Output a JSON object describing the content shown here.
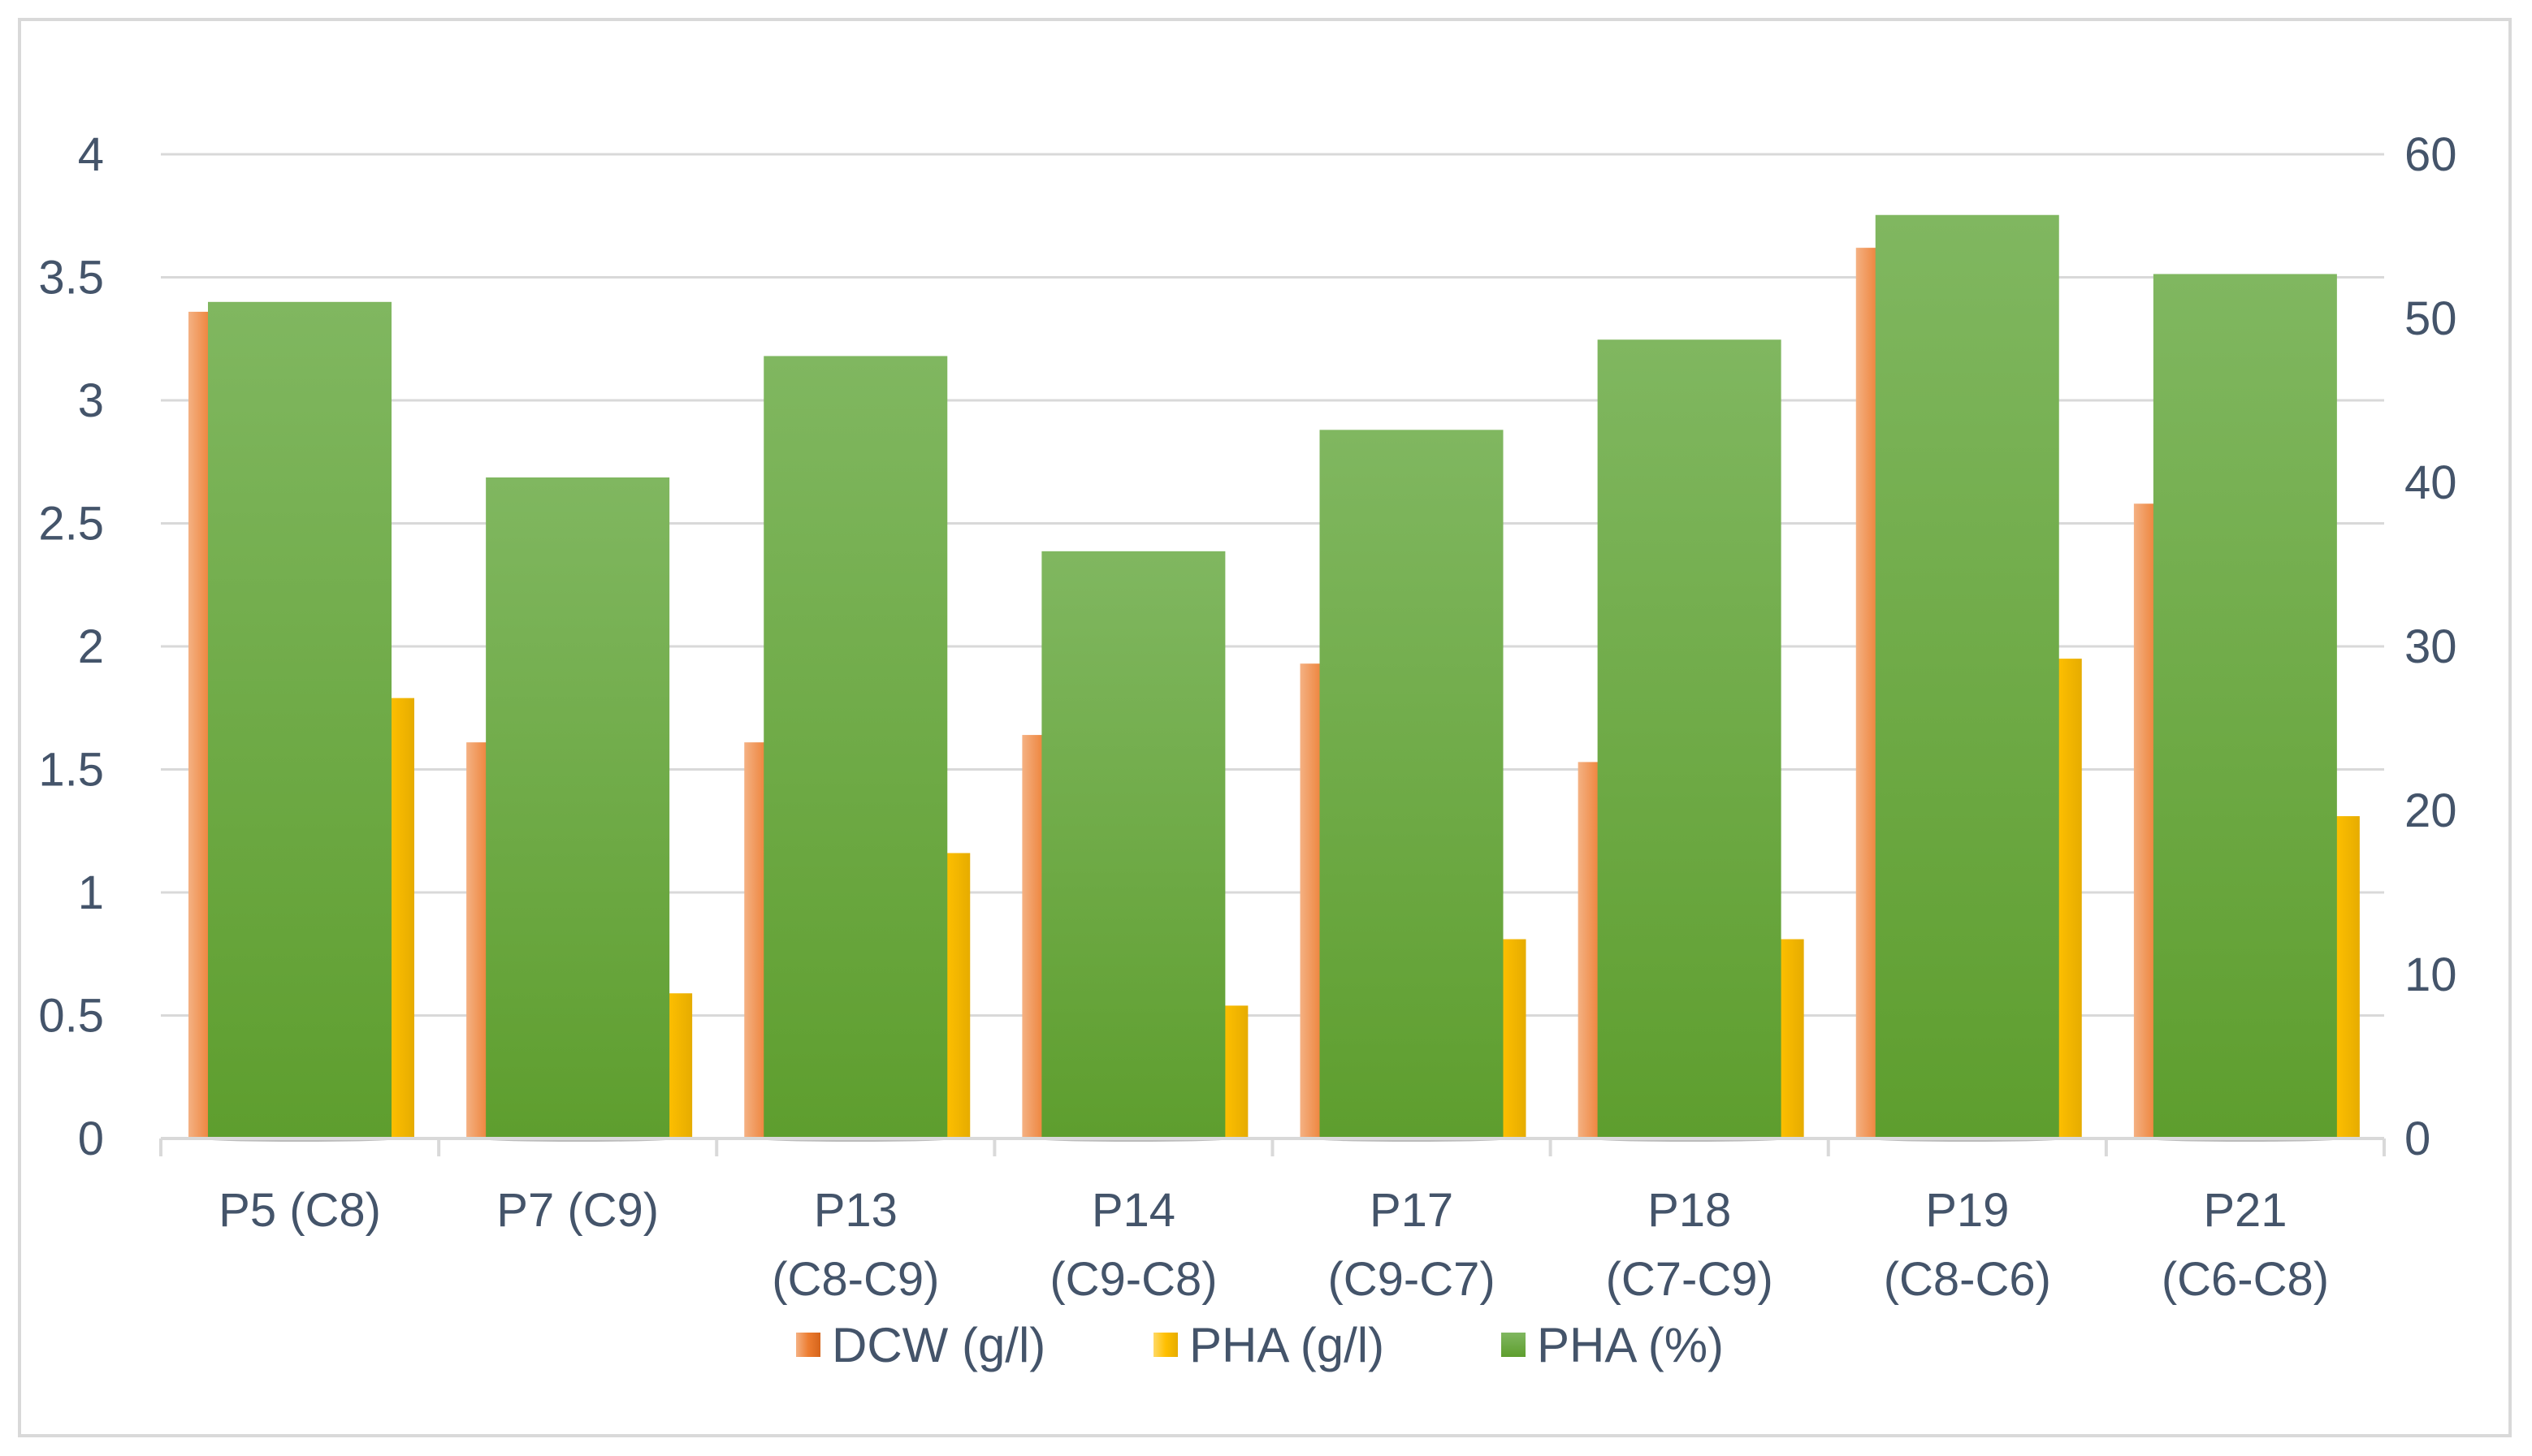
{
  "chart_data": {
    "type": "bar",
    "title": "",
    "xlabel": "",
    "ylabel": "",
    "y2label": "",
    "categories": [
      [
        "P5 (C8)"
      ],
      [
        "P7 (C9)"
      ],
      [
        "P13",
        "(C8-C9)"
      ],
      [
        "P14",
        "(C9-C8)"
      ],
      [
        "P17",
        "(C9-C7)"
      ],
      [
        "P18",
        "(C7-C9)"
      ],
      [
        "P19",
        "(C8-C6)"
      ],
      [
        "P21",
        "(C6-C8)"
      ]
    ],
    "series": [
      {
        "name": "DCW (g/l)",
        "axis": "left",
        "color": "#ed7d31",
        "values": [
          3.36,
          1.61,
          1.61,
          1.64,
          1.93,
          1.53,
          3.62,
          2.58
        ]
      },
      {
        "name": "PHA (g/l)",
        "axis": "left",
        "color": "#ffc000",
        "values": [
          1.79,
          0.59,
          1.16,
          0.54,
          0.81,
          0.81,
          1.95,
          1.31
        ]
      },
      {
        "name": "PHA (%)",
        "axis": "right",
        "color": "#70ad47",
        "values": [
          51,
          40.3,
          47.7,
          35.8,
          43.2,
          48.7,
          56.3,
          52.7
        ]
      }
    ],
    "y_left": {
      "min": 0,
      "max": 4,
      "ticks": [
        0,
        0.5,
        1,
        1.5,
        2,
        2.5,
        3,
        3.5,
        4
      ],
      "tick_labels": [
        "0",
        "0.5",
        "1",
        "1.5",
        "2",
        "2.5",
        "3",
        "3.5",
        "4"
      ]
    },
    "y_right": {
      "min": 0,
      "max": 60,
      "ticks": [
        0,
        10,
        20,
        30,
        40,
        50,
        60
      ],
      "tick_labels": [
        "0",
        "10",
        "20",
        "30",
        "40",
        "50",
        "60"
      ]
    },
    "grid": true,
    "legend_position": "bottom"
  }
}
